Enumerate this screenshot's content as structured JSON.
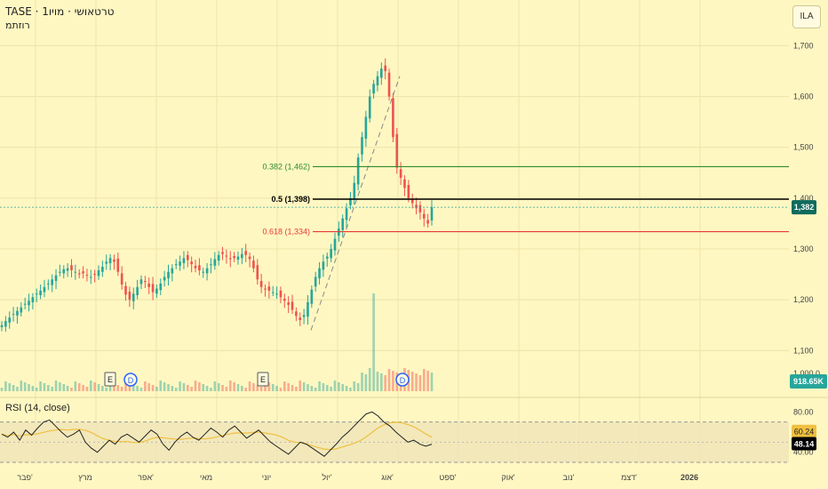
{
  "header": {
    "line1": "TASE · טרטאושי · מויו1",
    "line2": "רוזתמ",
    "currency": "ILA"
  },
  "colors": {
    "bg": "#fff7c2",
    "up": "#26a69a",
    "down": "#ef5350",
    "grid": "#ece4a8",
    "fib382": "#2e8b2e",
    "fib05": "#000000",
    "fib618": "#e53935",
    "rsi": "#222222",
    "rsiMa": "#f0c040"
  },
  "chart_data": [
    {
      "type": "candlestick",
      "title": "",
      "y_ticks": [
        1100,
        1200,
        1300,
        1400,
        1500,
        1600,
        1700
      ],
      "y_tick_labels": [
        "1,100",
        "1,200",
        "1,300",
        "1,400",
        "1,500",
        "1,600",
        "1,700"
      ],
      "ylim": [
        1020,
        1720
      ],
      "x_tick_labels": [
        "פבר'",
        "מרץ",
        "אפר'",
        "מאי",
        "יוני",
        "יול'",
        "אוג'",
        "ספט'",
        "אוק'",
        "נוב'",
        "דצמ'",
        "2026"
      ],
      "last_price": 1382,
      "last_price_label": "1,382",
      "volume_label": "918.65K",
      "volume_axis_label": "1,000.0",
      "fib_levels": [
        {
          "label": "0.382 (1,462)",
          "value": 1462
        },
        {
          "label": "0.5 (1,398)",
          "value": 1398
        },
        {
          "label": "0.618 (1,334)",
          "value": 1334
        }
      ],
      "events": [
        "E",
        "D",
        "E",
        "D"
      ],
      "close_path": [
        1150,
        1158,
        1165,
        1172,
        1178,
        1185,
        1192,
        1198,
        1205,
        1212,
        1218,
        1225,
        1232,
        1240,
        1248,
        1255,
        1260,
        1262,
        1258,
        1255,
        1250,
        1252,
        1248,
        1245,
        1250,
        1258,
        1265,
        1275,
        1282,
        1275,
        1255,
        1230,
        1210,
        1200,
        1212,
        1225,
        1240,
        1235,
        1225,
        1215,
        1222,
        1232,
        1245,
        1255,
        1262,
        1270,
        1275,
        1282,
        1278,
        1270,
        1262,
        1258,
        1255,
        1262,
        1270,
        1280,
        1288,
        1290,
        1285,
        1280,
        1282,
        1285,
        1290,
        1288,
        1280,
        1262,
        1240,
        1225,
        1220,
        1218,
        1215,
        1212,
        1205,
        1198,
        1190,
        1180,
        1168,
        1160,
        1170,
        1195,
        1220,
        1245,
        1262,
        1275,
        1285,
        1300,
        1320,
        1340,
        1360,
        1380,
        1400,
        1430,
        1480,
        1520,
        1560,
        1600,
        1625,
        1640,
        1655,
        1650,
        1600,
        1520,
        1460,
        1440,
        1420,
        1400,
        1390,
        1380,
        1372,
        1360,
        1350,
        1382
      ]
    },
    {
      "type": "line",
      "title": "RSI (14, close)",
      "ylim": [
        30,
        90
      ],
      "y_ticks": [
        80,
        40
      ],
      "y_tick_labels": [
        "80.00",
        "40.00"
      ],
      "band": [
        70,
        30
      ],
      "value": 48.14,
      "value_label": "48.14",
      "ma_value": 60.24,
      "ma_value_label": "60.24",
      "series": [
        58,
        55,
        60,
        52,
        62,
        57,
        64,
        70,
        72,
        66,
        60,
        55,
        58,
        62,
        50,
        44,
        40,
        46,
        52,
        48,
        55,
        58,
        54,
        50,
        56,
        62,
        58,
        48,
        42,
        50,
        56,
        60,
        55,
        52,
        58,
        64,
        60,
        55,
        62,
        66,
        60,
        54,
        58,
        62,
        56,
        50,
        46,
        42,
        38,
        44,
        50,
        48,
        44,
        40,
        36,
        42,
        48,
        55,
        60,
        66,
        72,
        78,
        80,
        76,
        70,
        66,
        60,
        55,
        50,
        52,
        48,
        46,
        48
      ]
    }
  ]
}
